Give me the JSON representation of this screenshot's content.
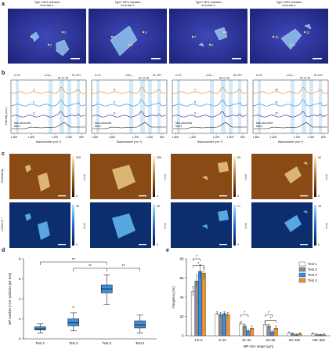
{
  "panel_labels": {
    "a": "a",
    "b": "b",
    "c": "c",
    "d": "d",
    "e": "e"
  },
  "panel_a": {
    "titles": [
      [
        "Type I MPs released",
        "from test 1"
      ],
      [
        "Type I MPs released",
        "from test 2"
      ],
      [
        "Type I MPs released",
        "from test 3"
      ],
      [
        "Type I MPs released",
        "from test 4"
      ]
    ],
    "markers": [
      [
        "1",
        "2",
        "3"
      ],
      [
        "4",
        "5",
        "6"
      ],
      [
        "7",
        "8",
        "9"
      ],
      [
        "10",
        "11",
        "12"
      ]
    ]
  },
  "panel_b": {
    "ylabel": "Intensity (a.u.)",
    "xlabel": "Wavenumber (cm⁻¹)",
    "xticks": [
      "1,800",
      "1,600",
      "1,200",
      "1,000",
      "800"
    ],
    "top_labels": [
      "C=O",
      "–CH₂–",
      "Si–O–Si",
      "Si–OH"
    ],
    "non_observed": [
      [
        "Non-observed",
        "test 1"
      ],
      [
        "Non-observed",
        "test 2"
      ],
      [
        "Non-observed",
        "test 3"
      ],
      [
        "Non-observed",
        "test 4"
      ]
    ],
    "curve_numbers": [
      [
        "1",
        "2",
        "3"
      ],
      [
        "4",
        "5",
        "6"
      ],
      [
        "7",
        "8",
        "9"
      ],
      [
        "10",
        "11",
        "12"
      ]
    ]
  },
  "panel_c": {
    "row1_label": "Reflectivity",
    "row2_label": "1,010 cm⁻¹",
    "unit": "(a.u.)",
    "row1_max": [
      "200",
      "250",
      "55",
      "90"
    ],
    "row2_max": [
      "45",
      "40",
      "17",
      "16"
    ],
    "min": "0"
  },
  "chart_data": [
    {
      "type": "box",
      "ylabel": "MP number (×10⁵ particles per test)",
      "categories": [
        "Test 1",
        "Test 2",
        "Test 3",
        "Test 4"
      ],
      "yticks": [
        "0",
        "2",
        "4",
        "6",
        "8"
      ],
      "ylim": [
        0,
        8
      ],
      "boxes": [
        {
          "name": "Test 1",
          "min": 0.6,
          "q1": 0.9,
          "median": 1.0,
          "q3": 1.2,
          "max": 1.5
        },
        {
          "name": "Test 2",
          "min": 0.8,
          "q1": 1.3,
          "median": 1.6,
          "q3": 2.0,
          "max": 2.6,
          "outliers": [
            3.2
          ]
        },
        {
          "name": "Test 3",
          "min": 3.4,
          "q1": 4.6,
          "median": 5.0,
          "q3": 5.4,
          "max": 6.4
        },
        {
          "name": "Test 4",
          "min": 0.6,
          "q1": 1.1,
          "median": 1.4,
          "q3": 1.8,
          "max": 2.4
        }
      ],
      "significance": [
        "**",
        "**",
        "**"
      ],
      "colors": {
        "Test 1": "#3e8fd8",
        "Test 2": "#3e8fd8",
        "Test 3": "#3e8fd8",
        "Test 4": "#3e8fd8"
      }
    },
    {
      "type": "bar",
      "ylabel": "Frequency (%)",
      "xlabel": "MP size range (μm)",
      "categories": [
        "1.5–5",
        "5–10",
        "10–20",
        "20–50",
        "50–100",
        "100–350"
      ],
      "yticks": [
        "0",
        "20",
        "40",
        "60",
        "80"
      ],
      "ylim": [
        0,
        80
      ],
      "series": [
        {
          "name": "Test 1",
          "color": "#ffffff",
          "values": [
            46,
            23,
            13,
            12,
            3,
            2
          ],
          "err": [
            5,
            2,
            2,
            2,
            1,
            1
          ]
        },
        {
          "name": "Test 2",
          "color": "#8c8c8c",
          "values": [
            57,
            22,
            10,
            10,
            2,
            1
          ],
          "err": [
            6,
            2,
            2,
            2,
            1,
            1
          ]
        },
        {
          "name": "Test 3",
          "color": "#3d8be0",
          "values": [
            67,
            23,
            5,
            4,
            1,
            1
          ],
          "err": [
            7,
            2,
            1,
            1,
            1,
            0.5
          ]
        },
        {
          "name": "Test 4",
          "color": "#f0952e",
          "values": [
            65,
            22,
            8,
            8,
            2,
            1
          ],
          "err": [
            6,
            2,
            2,
            2,
            1,
            1
          ]
        }
      ],
      "significance": [
        "*",
        "*",
        "*",
        "*",
        "*"
      ]
    }
  ]
}
